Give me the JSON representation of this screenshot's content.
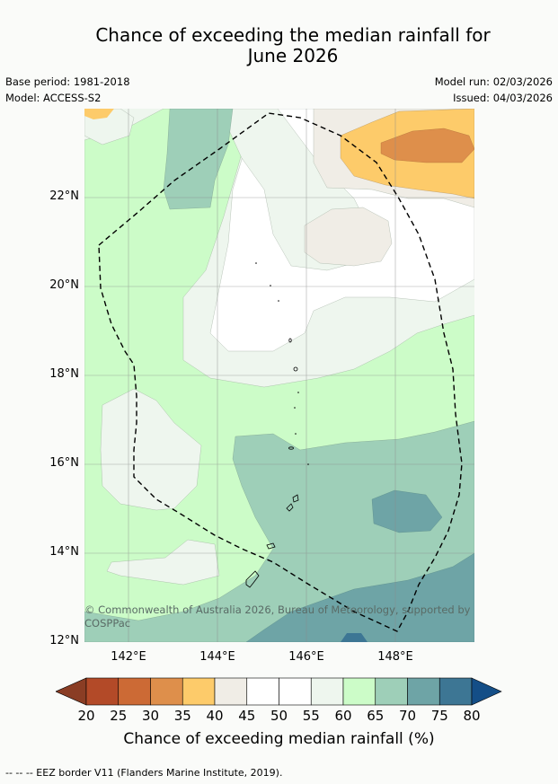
{
  "title": {
    "line1": "Chance of exceeding the median rainfall for",
    "line2": "June 2026"
  },
  "meta": {
    "base_period": "Base period: 1981-2018",
    "model": "Model: ACCESS-S2",
    "model_run": "Model run: 02/03/2026",
    "issued": "Issued: 04/03/2026"
  },
  "axes": {
    "y_labels": [
      "22°N",
      "20°N",
      "18°N",
      "16°N",
      "14°N",
      "12°N"
    ],
    "x_labels": [
      "142°E",
      "144°E",
      "146°E",
      "148°E"
    ]
  },
  "copyright": "© Commonwealth of Australia 2026, Bureau of Meteorology, supported by COSPPac",
  "colorbar": {
    "ticks": [
      "20",
      "25",
      "30",
      "35",
      "40",
      "45",
      "50",
      "55",
      "60",
      "65",
      "70",
      "75",
      "80"
    ],
    "colors": [
      "#b34a28",
      "#cc6a35",
      "#de8f4b",
      "#fdcb6a",
      "#f0ede6",
      "#ffffff",
      "#ffffff",
      "#eef6ee",
      "#ccfcc8",
      "#9ecfb8",
      "#6ea4a6",
      "#3d7694"
    ],
    "under_color": "#8a3d24",
    "over_color": "#144e87",
    "title": "Chance of exceeding median rainfall (%)"
  },
  "footer": "--  --  -- EEZ border V11 (Flanders Marine Institute, 2019)."
}
